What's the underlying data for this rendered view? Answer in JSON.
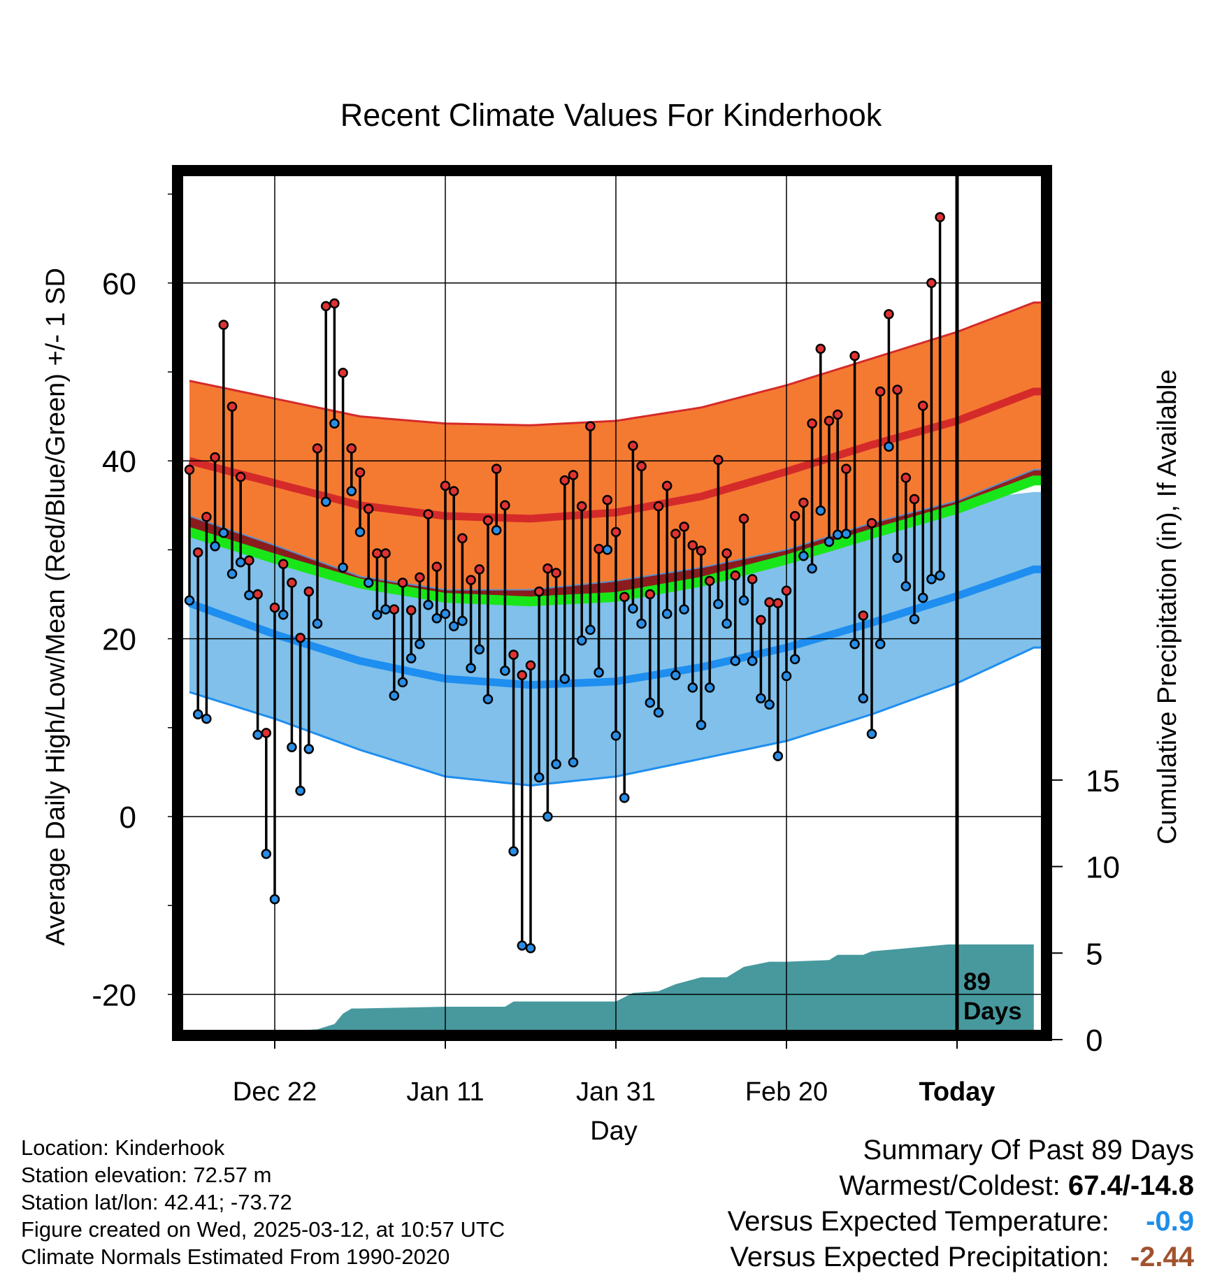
{
  "title": "Recent Climate Values For Kinderhook",
  "xlabel": "Day",
  "ylabel_left": "Average Daily High/Low/Mean (Red/Blue/Green) +/- 1 SD",
  "ylabel_right": "Cumulative Precipitation (in), If Available",
  "today_annotation": [
    "89",
    "Days"
  ],
  "info": [
    "Location: Kinderhook",
    "Station elevation: 72.57 m",
    "Station lat/lon: 42.41; -73.72",
    "Figure created on Wed, 2025-03-12, at 10:57 UTC",
    "Climate Normals Estimated From 1990-2020"
  ],
  "summary": {
    "heading": "Summary Of Past 89 Days",
    "warm_cold_label": "Warmest/Coldest:",
    "warm_cold_value": "67.4/-14.8",
    "temp_label": "Versus Expected Temperature:",
    "temp_value": "-0.9",
    "temp_color": "#1e8ee8",
    "precip_label": "Versus Expected Precipitation:",
    "precip_value": "-2.44",
    "precip_color": "#a0522d"
  },
  "colors": {
    "high_band": "#f47a32",
    "high_mean_line": "#d52a2a",
    "low_band": "#80c0ea",
    "low_mean_line": "#1e8ef0",
    "overlap": "#8b1313",
    "mean_line": "#19e619",
    "precip": "#47999e",
    "high_dot": "#e03232",
    "low_dot": "#2a8ee6"
  },
  "chart_data": {
    "type": "line",
    "x_range": [
      -10,
      90
    ],
    "ylim": [
      -24,
      73
    ],
    "y_ticks": [
      -20,
      0,
      20,
      40,
      60
    ],
    "precip_ylim": [
      0,
      15
    ],
    "precip_ticks": [
      0,
      5,
      10,
      15
    ],
    "x_ticks": [
      {
        "day": 0,
        "label": "Dec 22"
      },
      {
        "day": 20,
        "label": "Jan 11"
      },
      {
        "day": 40,
        "label": "Jan 31"
      },
      {
        "day": 60,
        "label": "Feb 20"
      },
      {
        "day": 80,
        "label": "Today"
      }
    ],
    "normals": {
      "days": [
        -10,
        0,
        10,
        20,
        30,
        40,
        50,
        60,
        70,
        80,
        89
      ],
      "high_mean": [
        40,
        37.5,
        35,
        33.8,
        33.5,
        34.2,
        36,
        38.8,
        41.8,
        44.5,
        47.8
      ],
      "high_sd_upper": [
        49,
        47,
        45,
        44.2,
        44,
        44.5,
        46,
        48.5,
        51.5,
        54.5,
        57.8
      ],
      "high_sd_lower": [
        33.8,
        30.5,
        27,
        25.5,
        25.5,
        26.5,
        28,
        30,
        33,
        35.5,
        39
      ],
      "low_mean": [
        24,
        20.5,
        17.5,
        15.5,
        14.8,
        15.2,
        16.8,
        19,
        21.8,
        24.8,
        27.8
      ],
      "low_sd_upper": [
        33.8,
        30.5,
        27,
        25.5,
        25.5,
        26.5,
        28,
        30,
        33,
        35.5,
        36.5
      ],
      "low_sd_lower": [
        14,
        11,
        7.5,
        4.5,
        3.5,
        4.5,
        6.5,
        8.5,
        11.5,
        15,
        19
      ],
      "mean": [
        32,
        29,
        26.2,
        24.6,
        24.2,
        24.7,
        26.4,
        28.9,
        31.8,
        34.6,
        37.8
      ]
    },
    "daily": {
      "start_day": -10,
      "high": [
        39.0,
        29.7,
        33.7,
        40.4,
        55.3,
        46.1,
        38.2,
        28.8,
        25.0,
        9.4,
        23.5,
        28.4,
        26.3,
        20.1,
        25.3,
        41.4,
        57.4,
        57.7,
        49.9,
        41.4,
        38.7,
        34.6,
        29.6,
        29.6,
        23.3,
        26.3,
        23.2,
        26.9,
        34.0,
        28.1,
        37.2,
        36.6,
        31.3,
        26.6,
        27.8,
        33.3,
        39.1,
        35.0,
        18.2,
        15.9,
        17.0,
        25.3,
        27.9,
        27.4,
        37.8,
        38.4,
        34.9,
        43.9,
        30.1,
        35.6,
        32.0,
        24.7,
        41.7,
        39.4,
        25.0,
        34.9,
        37.2,
        31.8,
        32.6,
        30.5,
        29.9,
        26.5,
        40.1,
        29.6,
        27.1,
        33.5,
        26.7,
        22.1,
        24.1,
        24.0,
        25.4,
        33.8,
        35.3,
        44.2,
        52.6,
        44.5,
        45.2,
        39.1,
        51.8,
        22.6,
        33.0,
        47.8,
        56.5,
        48.0,
        38.1,
        35.7,
        46.2,
        60.0,
        67.4
      ],
      "low": [
        24.3,
        11.5,
        11.0,
        30.4,
        31.9,
        27.3,
        28.6,
        24.9,
        9.2,
        -4.2,
        -9.3,
        22.7,
        7.8,
        2.9,
        7.6,
        21.7,
        35.4,
        44.2,
        28.0,
        36.6,
        32.0,
        26.3,
        22.7,
        23.3,
        13.6,
        15.1,
        17.8,
        19.4,
        23.8,
        22.3,
        22.8,
        21.4,
        22.0,
        16.7,
        18.8,
        13.2,
        32.2,
        16.4,
        -3.9,
        -14.5,
        -14.8,
        4.4,
        0.0,
        5.9,
        15.5,
        6.1,
        19.8,
        21.0,
        16.2,
        30.0,
        9.1,
        2.1,
        23.4,
        21.7,
        12.8,
        11.7,
        22.8,
        15.9,
        23.3,
        14.5,
        10.3,
        14.5,
        23.9,
        21.7,
        17.5,
        24.3,
        17.5,
        13.3,
        12.6,
        6.8,
        15.8,
        17.7,
        29.3,
        27.9,
        34.4,
        30.9,
        31.7,
        31.8,
        19.4,
        13.3,
        9.3,
        19.4,
        41.6,
        29.1,
        25.9,
        22.2,
        24.6,
        26.7,
        27.1
      ]
    },
    "precip": {
      "days": [
        -10,
        -5,
        -3,
        -2,
        0,
        2,
        5,
        7,
        8,
        9,
        10,
        20,
        27,
        28,
        30,
        40,
        42,
        45,
        47,
        50,
        53,
        55,
        58,
        60,
        65,
        66,
        69,
        70,
        79,
        80,
        89
      ],
      "values": [
        0,
        0,
        0.05,
        0.1,
        0.4,
        0.5,
        0.6,
        0.9,
        1.5,
        1.8,
        1.8,
        1.9,
        1.9,
        2.2,
        2.2,
        2.2,
        2.7,
        2.8,
        3.2,
        3.6,
        3.6,
        4.2,
        4.5,
        4.5,
        4.6,
        4.9,
        4.9,
        5.1,
        5.5,
        5.5,
        5.5
      ]
    }
  }
}
